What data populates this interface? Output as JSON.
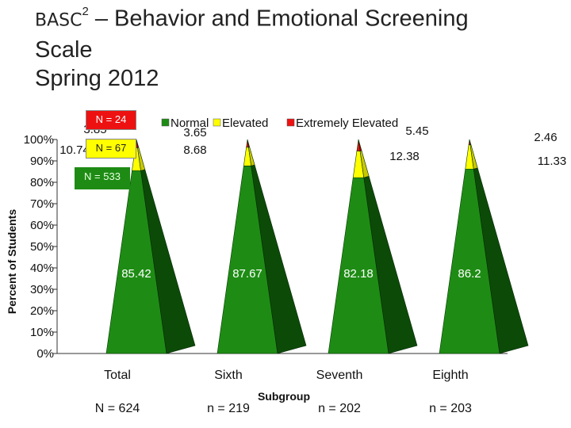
{
  "title": {
    "prefix": "BASC",
    "superscript": "2",
    "line1_rest": " – Behavior and Emotional Screening",
    "line2": "Scale",
    "line3": "Spring 2012"
  },
  "callouts": {
    "extreme": "N = 24",
    "elevated": "N = 67",
    "normal": "N = 533"
  },
  "colors": {
    "normal": "#1e8c14",
    "normal_side": "#0c4a08",
    "elevated": "#ffff00",
    "elevated_side": "#c8c800",
    "extreme": "#ee1111",
    "extreme_side": "#990000"
  },
  "chart_data": {
    "type": "bar",
    "style": "3d-pyramid-stacked-percent",
    "categories": [
      "Total",
      "Sixth",
      "Seventh",
      "Eighth"
    ],
    "category_n": [
      "N = 624",
      "n = 219",
      "n = 202",
      "n = 203"
    ],
    "series": [
      {
        "name": "Normal",
        "values": [
          85.42,
          87.67,
          82.18,
          86.2
        ]
      },
      {
        "name": "Elevated",
        "values": [
          10.74,
          8.68,
          12.38,
          11.33
        ]
      },
      {
        "name": "Extremely Elevated",
        "values": [
          3.85,
          3.65,
          5.45,
          2.46
        ]
      }
    ],
    "value_labels": {
      "Normal": [
        "85.42",
        "87.67",
        "82.18",
        "86.2"
      ],
      "Elevated": [
        "10.74",
        "8.68",
        "12.38",
        "11.33"
      ],
      "Extremely Elevated": [
        "3.85",
        "3.65",
        "5.45",
        "2.46"
      ]
    },
    "xlabel": "Subgroup",
    "ylabel": "Percent of Students",
    "ylim": [
      0,
      100
    ],
    "yticks": [
      "0%",
      "10%",
      "20%",
      "30%",
      "40%",
      "50%",
      "60%",
      "70%",
      "80%",
      "90%",
      "100%"
    ],
    "legend": "top",
    "grid": false
  }
}
